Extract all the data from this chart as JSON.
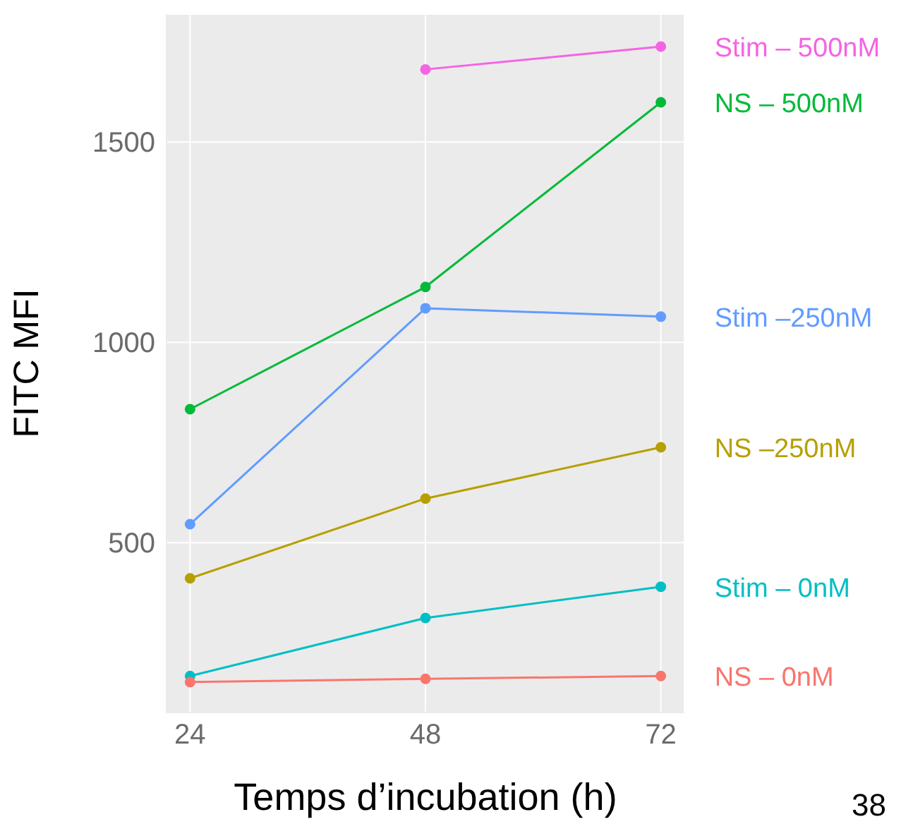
{
  "chart_data": {
    "type": "line",
    "xlabel": "Temps d’incubation (h)",
    "ylabel": "FITC MFI",
    "x": [
      24,
      48,
      72
    ],
    "xlim": [
      21.6,
      74.4
    ],
    "xticks": [
      24,
      48,
      72
    ],
    "ylim": [
      76,
      1819
    ],
    "yticks": [
      500,
      1000,
      1500
    ],
    "grid": true,
    "legend": false,
    "marker": "circle",
    "line_style": "solid",
    "annotations": [
      "38"
    ],
    "series": [
      {
        "name": "Stim – 500nM",
        "color": "#f564e3",
        "values": [
          null,
          1681,
          1738
        ]
      },
      {
        "name": "NS – 500nM",
        "color": "#00ba38",
        "values": [
          833,
          1138,
          1599
        ]
      },
      {
        "name": "Stim –250nM",
        "color": "#619cff",
        "values": [
          546,
          1085,
          1064
        ]
      },
      {
        "name": "NS –250nM",
        "color": "#b79f00",
        "values": [
          411,
          610,
          738
        ]
      },
      {
        "name": "Stim – 0nM",
        "color": "#00bfc4",
        "values": [
          167,
          312,
          390
        ]
      },
      {
        "name": "NS – 0nM",
        "color": "#f8766d",
        "values": [
          152,
          160,
          167
        ]
      }
    ]
  }
}
